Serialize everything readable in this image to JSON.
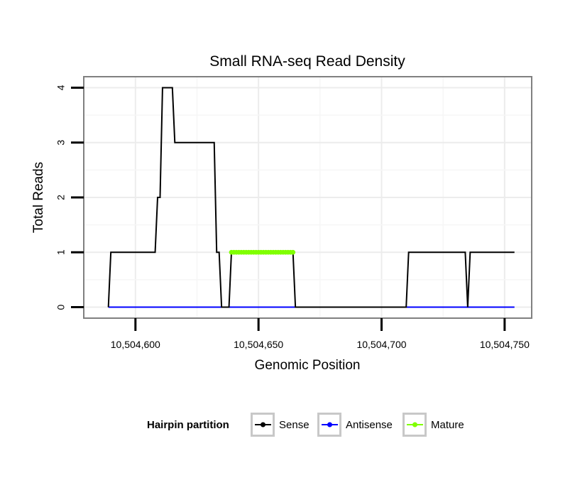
{
  "chart_data": {
    "type": "line",
    "title": "Small RNA-seq Read Density",
    "xlabel": "Genomic Position",
    "ylabel": "Total Reads",
    "xlim": [
      10504579,
      10504761
    ],
    "ylim": [
      -0.2,
      4.2
    ],
    "x_ticks": [
      10504600,
      10504650,
      10504700,
      10504750
    ],
    "x_tick_labels": [
      "10,504,600",
      "10,504,650",
      "10,504,700",
      "10,504,750"
    ],
    "y_ticks": [
      0,
      1,
      2,
      3,
      4
    ],
    "y_tick_labels": [
      "0",
      "1",
      "2",
      "3",
      "4"
    ],
    "grid": true,
    "legend": {
      "title": "Hairpin partition",
      "position": "bottom",
      "entries": [
        "Sense",
        "Antisense",
        "Mature"
      ]
    },
    "series": [
      {
        "name": "Sense",
        "color": "#000000",
        "points": [
          [
            10504589,
            0
          ],
          [
            10504590,
            1
          ],
          [
            10504608,
            1
          ],
          [
            10504609,
            2
          ],
          [
            10504610,
            2
          ],
          [
            10504611,
            4
          ],
          [
            10504615,
            4
          ],
          [
            10504616,
            3
          ],
          [
            10504632,
            3
          ],
          [
            10504633,
            1
          ],
          [
            10504634,
            1
          ],
          [
            10504635,
            0
          ],
          [
            10504638,
            0
          ],
          [
            10504639,
            1
          ],
          [
            10504664,
            1
          ],
          [
            10504665,
            0
          ],
          [
            10504710,
            0
          ],
          [
            10504711,
            1
          ],
          [
            10504734,
            1
          ],
          [
            10504735,
            0
          ],
          [
            10504736,
            1
          ],
          [
            10504754,
            1
          ]
        ]
      },
      {
        "name": "Antisense",
        "color": "#0000ff",
        "points": [
          [
            10504589,
            0
          ],
          [
            10504754,
            0
          ]
        ]
      },
      {
        "name": "Mature",
        "color": "#80ff00",
        "points": [
          [
            10504639,
            1
          ],
          [
            10504640,
            1
          ],
          [
            10504641,
            1
          ],
          [
            10504642,
            1
          ],
          [
            10504643,
            1
          ],
          [
            10504644,
            1
          ],
          [
            10504645,
            1
          ],
          [
            10504646,
            1
          ],
          [
            10504647,
            1
          ],
          [
            10504648,
            1
          ],
          [
            10504649,
            1
          ],
          [
            10504650,
            1
          ],
          [
            10504651,
            1
          ],
          [
            10504652,
            1
          ],
          [
            10504653,
            1
          ],
          [
            10504654,
            1
          ],
          [
            10504655,
            1
          ],
          [
            10504656,
            1
          ],
          [
            10504657,
            1
          ],
          [
            10504658,
            1
          ],
          [
            10504659,
            1
          ],
          [
            10504660,
            1
          ],
          [
            10504661,
            1
          ],
          [
            10504662,
            1
          ],
          [
            10504663,
            1
          ],
          [
            10504664,
            1
          ]
        ]
      }
    ]
  }
}
